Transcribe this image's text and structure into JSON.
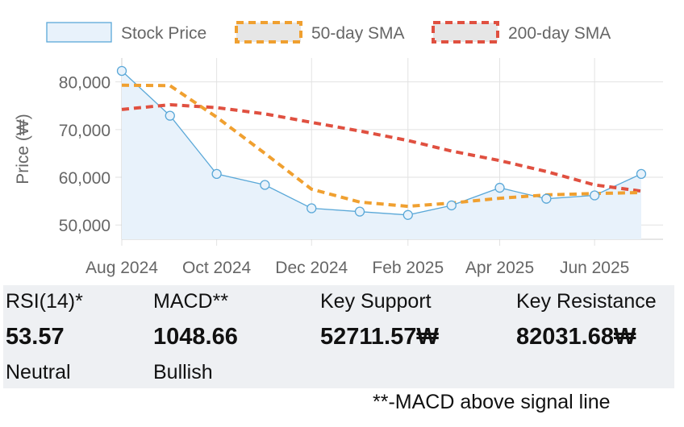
{
  "chart_data": {
    "type": "line",
    "ylabel": "Price (₩)",
    "xlabel": "",
    "ylim": [
      47000,
      85000
    ],
    "yticks": [
      50000,
      60000,
      70000,
      80000
    ],
    "ytick_labels": [
      "50,000",
      "60,000",
      "70,000",
      "80,000"
    ],
    "xlim": [
      "2024-08-01",
      "2025-07-15"
    ],
    "xticks": [
      "2024-08-01",
      "2024-10-01",
      "2024-12-01",
      "2025-02-01",
      "2025-04-01",
      "2025-06-01"
    ],
    "xtick_labels": [
      "Aug 2024",
      "Oct 2024",
      "Dec 2024",
      "Feb 2025",
      "Apr 2025",
      "Jun 2025"
    ],
    "grid": true,
    "legend_position": "top",
    "series": [
      {
        "name": "Stock Price",
        "style": "area",
        "color": "#5aa8d8",
        "fill": "#e8f2fb",
        "x": [
          "2024-08-01",
          "2024-09-01",
          "2024-10-01",
          "2024-11-01",
          "2024-12-01",
          "2025-01-01",
          "2025-02-01",
          "2025-03-01",
          "2025-04-01",
          "2025-05-01",
          "2025-06-01",
          "2025-07-01"
        ],
        "values": [
          82300,
          72900,
          60700,
          58400,
          53500,
          52800,
          52100,
          54100,
          57800,
          55500,
          56200,
          60700
        ]
      },
      {
        "name": "50-day SMA",
        "style": "dashed",
        "color": "#f0a030",
        "x": [
          "2024-08-01",
          "2024-09-01",
          "2024-10-01",
          "2024-11-01",
          "2024-12-01",
          "2025-01-01",
          "2025-02-01",
          "2025-03-01",
          "2025-04-01",
          "2025-05-01",
          "2025-06-01",
          "2025-07-01"
        ],
        "values": [
          79300,
          79200,
          72600,
          65000,
          57500,
          54800,
          53900,
          54600,
          55600,
          56300,
          56600,
          56800
        ]
      },
      {
        "name": "200-day SMA",
        "style": "dashed",
        "color": "#e05040",
        "x": [
          "2024-08-01",
          "2024-09-01",
          "2024-10-01",
          "2024-11-01",
          "2024-12-01",
          "2025-01-01",
          "2025-02-01",
          "2025-03-01",
          "2025-04-01",
          "2025-05-01",
          "2025-06-01",
          "2025-07-01"
        ],
        "values": [
          74200,
          75200,
          74600,
          73300,
          71500,
          69700,
          67700,
          65500,
          63500,
          61200,
          58400,
          57100
        ]
      }
    ]
  },
  "stats": [
    {
      "label": "RSI(14)*",
      "value": "53.57",
      "sub": "Neutral"
    },
    {
      "label": "MACD**",
      "value": "1048.66",
      "sub": "Bullish"
    },
    {
      "label": "Key Support",
      "value": "52711.57₩",
      "sub": ""
    },
    {
      "label": "Key Resistance",
      "value": "82031.68₩",
      "sub": ""
    }
  ],
  "footnote": "**-MACD above signal line"
}
